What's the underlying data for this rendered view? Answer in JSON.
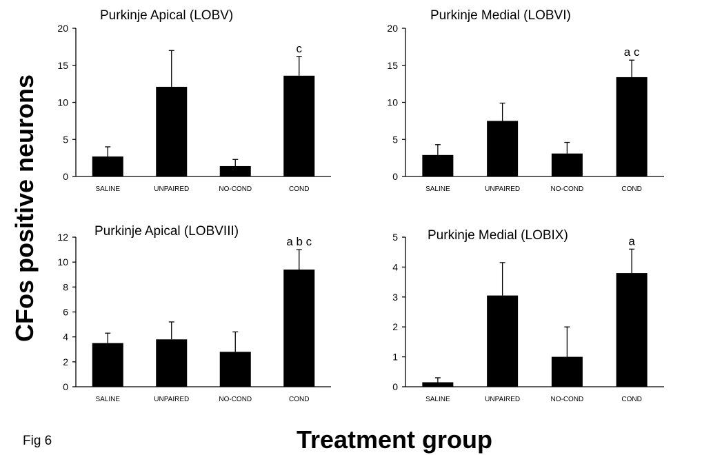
{
  "figure": {
    "ylabel": "CFos positive neurons",
    "xlabel": "Treatment group",
    "fig_label": "Fig 6"
  },
  "chart_data": [
    {
      "type": "bar",
      "title": "Purkinje Apical (LOBV)",
      "categories": [
        "SALINE",
        "UNPAIRED",
        "NO-COND",
        "COND"
      ],
      "values": [
        2.7,
        12.1,
        1.4,
        13.6
      ],
      "errors": [
        1.3,
        4.9,
        0.9,
        2.6
      ],
      "annotations": [
        "",
        "",
        "",
        "c"
      ],
      "ylim": [
        0,
        20
      ],
      "yticks": [
        0,
        5,
        10,
        15,
        20
      ]
    },
    {
      "type": "bar",
      "title": "Purkinje Medial (LOBVI)",
      "categories": [
        "SALINE",
        "UNPAIRED",
        "NO-COND",
        "COND"
      ],
      "values": [
        2.9,
        7.5,
        3.1,
        13.4
      ],
      "errors": [
        1.4,
        2.4,
        1.5,
        2.3
      ],
      "annotations": [
        "",
        "",
        "",
        "a c"
      ],
      "ylim": [
        0,
        20
      ],
      "yticks": [
        0,
        5,
        10,
        15,
        20
      ]
    },
    {
      "type": "bar",
      "title": "Purkinje Apical (LOBVIII)",
      "categories": [
        "SALINE",
        "UNPAIRED",
        "NO-COND",
        "COND"
      ],
      "values": [
        3.5,
        3.8,
        2.8,
        9.4
      ],
      "errors": [
        0.8,
        1.4,
        1.6,
        1.6
      ],
      "annotations": [
        "",
        "",
        "",
        "a b c"
      ],
      "ylim": [
        0,
        12
      ],
      "yticks": [
        0,
        2,
        4,
        6,
        8,
        10,
        12
      ]
    },
    {
      "type": "bar",
      "title": "Purkinje Medial (LOBIX)",
      "categories": [
        "SALINE",
        "UNPAIRED",
        "NO-COND",
        "COND"
      ],
      "values": [
        0.15,
        3.05,
        1.0,
        3.8
      ],
      "errors": [
        0.15,
        1.1,
        1.0,
        0.8
      ],
      "annotations": [
        "",
        "",
        "",
        "a"
      ],
      "ylim": [
        0,
        5
      ],
      "yticks": [
        0,
        1,
        2,
        3,
        4,
        5
      ]
    }
  ]
}
